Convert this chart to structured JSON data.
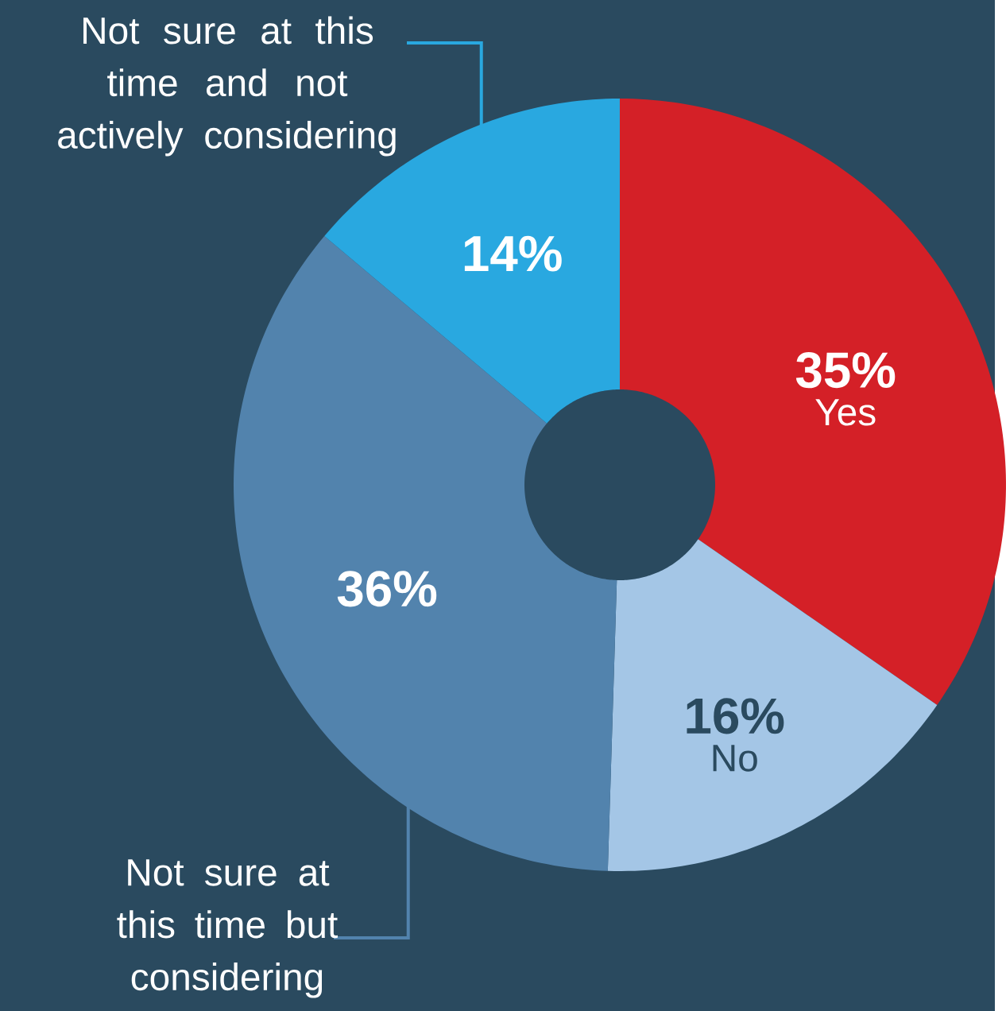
{
  "chart_data": {
    "type": "donut",
    "categories": [
      "Yes",
      "No",
      "Not sure at this time but considering",
      "Not sure at this time and not actively considering"
    ],
    "values": [
      35,
      16,
      36,
      14
    ],
    "value_labels": [
      "35%",
      "16%",
      "36%",
      "14%"
    ],
    "colors": [
      "#d42027",
      "#a4c6e6",
      "#5283ad",
      "#29a8e0"
    ]
  }
}
